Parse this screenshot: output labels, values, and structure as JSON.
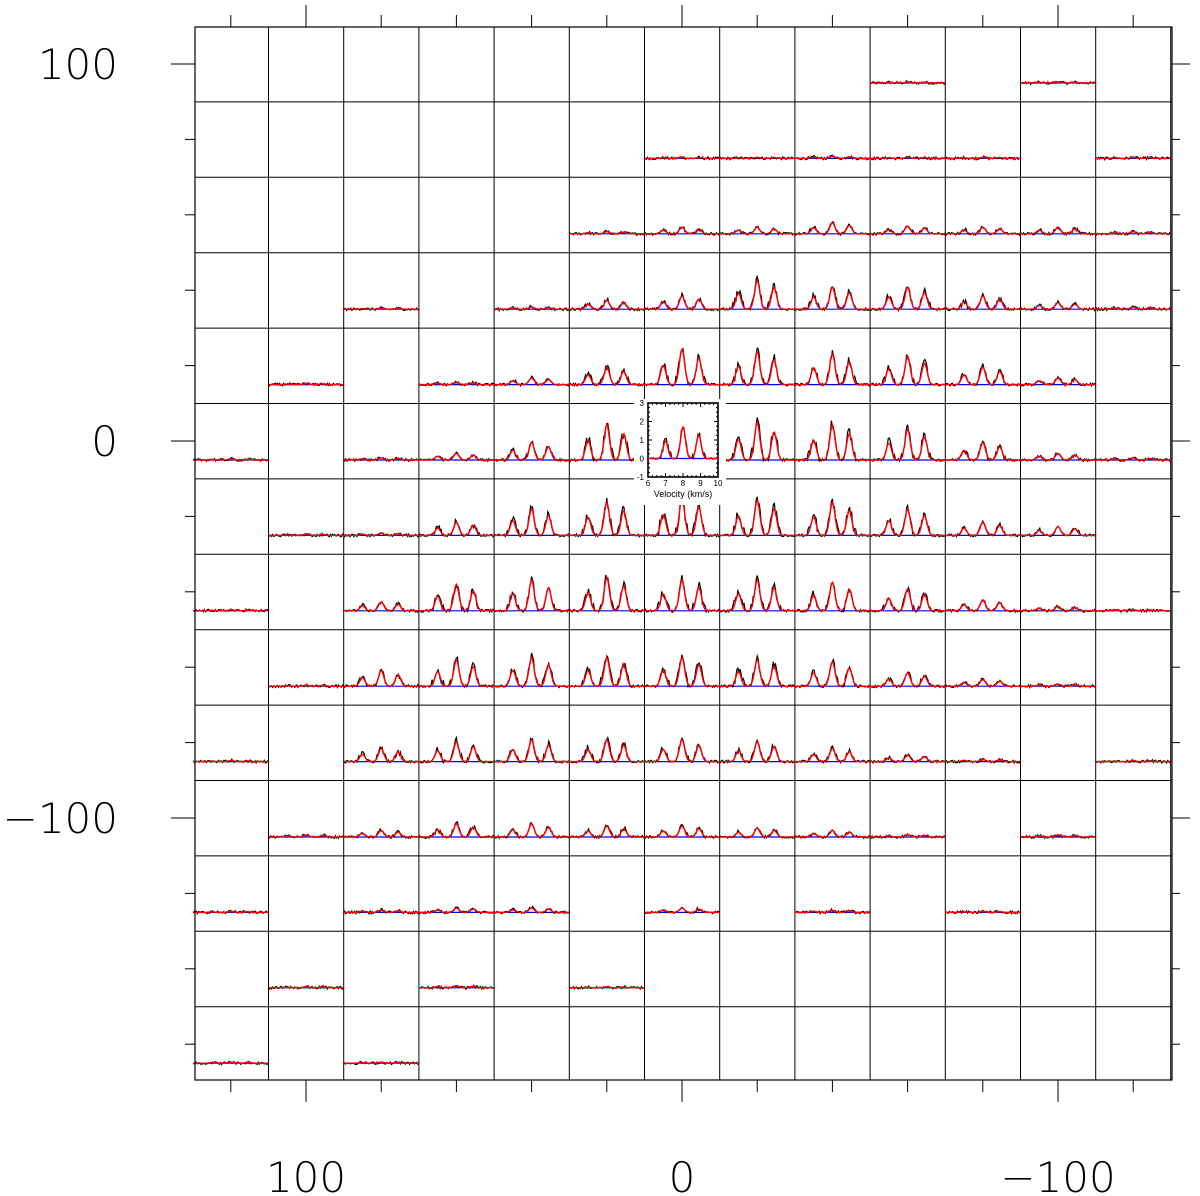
{
  "chart_data": {
    "type": "line",
    "xlim": [
      130,
      -130
    ],
    "ylim": [
      -170,
      110
    ],
    "x_tick_labels": [
      "100",
      "0",
      "−100"
    ],
    "y_tick_labels": [
      "100",
      "0",
      "−100"
    ],
    "x_tick_values": [
      100,
      0,
      -100
    ],
    "y_tick_values": [
      100,
      0,
      -100
    ],
    "x_minor_ticks": [
      120,
      100,
      80,
      60,
      40,
      20,
      0,
      -20,
      -40,
      -60,
      -80,
      -100,
      -120
    ],
    "y_minor_ticks": [
      100,
      80,
      60,
      40,
      20,
      0,
      -20,
      -40,
      -60,
      -80,
      -100,
      -120,
      -140,
      -160
    ],
    "colors": {
      "observed": "#000000",
      "model": "#ff0000",
      "baseline": "#0000ff",
      "grid": "#000000"
    },
    "inset": {
      "xlabel": "Velocity (km/s)",
      "x_ticks": [
        "6",
        "7",
        "8",
        "9",
        "10"
      ],
      "y_ticks": [
        "3",
        "2",
        "1",
        "0",
        "-1"
      ],
      "xlim": [
        6,
        10
      ],
      "ylim": [
        -1,
        3
      ]
    },
    "rows_y": [
      100,
      80,
      60,
      40,
      20,
      0,
      -20,
      -40,
      -60,
      -80,
      -100,
      -120,
      -140,
      -160
    ],
    "cols_x": [
      120,
      100,
      80,
      60,
      40,
      20,
      0,
      -20,
      -40,
      -60,
      -80,
      -100,
      -120
    ],
    "peak_intensity_grid": [
      [
        null,
        null,
        null,
        null,
        null,
        null,
        null,
        null,
        null,
        0.05,
        null,
        0.05,
        null
      ],
      [
        null,
        null,
        null,
        null,
        null,
        null,
        0.05,
        0.05,
        0.1,
        0.05,
        0.05,
        null,
        0.05
      ],
      [
        null,
        null,
        null,
        null,
        null,
        0.1,
        0.3,
        0.3,
        0.5,
        0.35,
        0.3,
        0.3,
        0.1
      ],
      [
        null,
        null,
        0.05,
        null,
        0.1,
        0.4,
        0.6,
        1.3,
        1.0,
        1.0,
        0.6,
        0.3,
        0.1
      ],
      [
        null,
        0.05,
        null,
        0.1,
        0.3,
        0.8,
        1.6,
        1.5,
        1.4,
        1.3,
        0.8,
        0.3,
        null
      ],
      [
        0.05,
        null,
        0.1,
        0.3,
        0.8,
        1.6,
        1.7,
        1.7,
        1.6,
        1.4,
        0.8,
        0.3,
        0.1
      ],
      [
        null,
        0.05,
        0.1,
        0.6,
        1.2,
        1.5,
        1.7,
        1.6,
        1.5,
        1.2,
        0.6,
        0.4,
        null
      ],
      [
        0.05,
        null,
        0.4,
        1.2,
        1.4,
        1.5,
        1.4,
        1.4,
        1.3,
        1.0,
        0.5,
        0.2,
        0.05
      ],
      [
        null,
        0.05,
        0.7,
        1.2,
        1.3,
        1.3,
        1.3,
        1.2,
        1.1,
        0.6,
        0.3,
        0.1,
        null
      ],
      [
        0.05,
        null,
        0.6,
        0.9,
        1.0,
        1.0,
        1.0,
        0.9,
        0.6,
        0.3,
        0.1,
        null,
        0.05
      ],
      [
        null,
        0.1,
        0.3,
        0.6,
        0.6,
        0.5,
        0.5,
        0.4,
        0.3,
        0.1,
        null,
        0.1,
        null
      ],
      [
        0.05,
        null,
        0.1,
        0.2,
        0.2,
        null,
        0.2,
        null,
        0.1,
        null,
        0.05,
        null,
        null
      ],
      [
        null,
        0.05,
        null,
        0.1,
        null,
        0.05,
        null,
        null,
        null,
        null,
        null,
        null,
        null
      ],
      [
        0.05,
        null,
        0.05,
        null,
        null,
        null,
        null,
        null,
        null,
        null,
        null,
        null,
        null
      ]
    ]
  }
}
